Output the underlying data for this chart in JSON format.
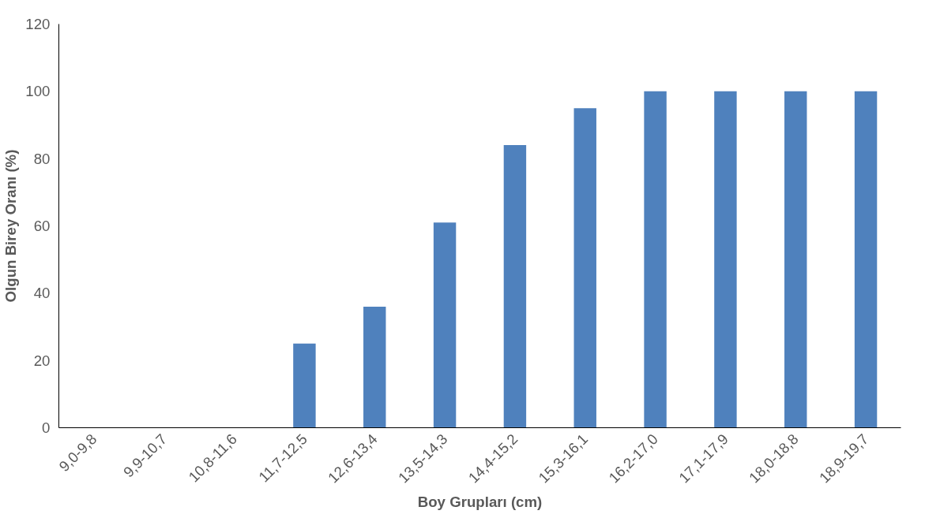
{
  "chart_data": {
    "type": "bar",
    "xlabel": "Boy Grupları (cm)",
    "ylabel": "Olgun Birey Oranı (%)",
    "categories": [
      "9,0-9,8",
      "9,9-10,7",
      "10,8-11,6",
      "11,7-12,5",
      "12,6-13,4",
      "13,5-14,3",
      "14,4-15,2",
      "15,3-16,1",
      "16,2-17,0",
      "17,1-17,9",
      "18,0-18,8",
      "18,9-19,7"
    ],
    "values": [
      0,
      0,
      0,
      25,
      36,
      61,
      84,
      95,
      100,
      100,
      100,
      100
    ],
    "color": "#4f81bd",
    "ylim": [
      0,
      120
    ],
    "yticks": [
      0,
      20,
      40,
      60,
      80,
      100,
      120
    ],
    "grid": false
  }
}
